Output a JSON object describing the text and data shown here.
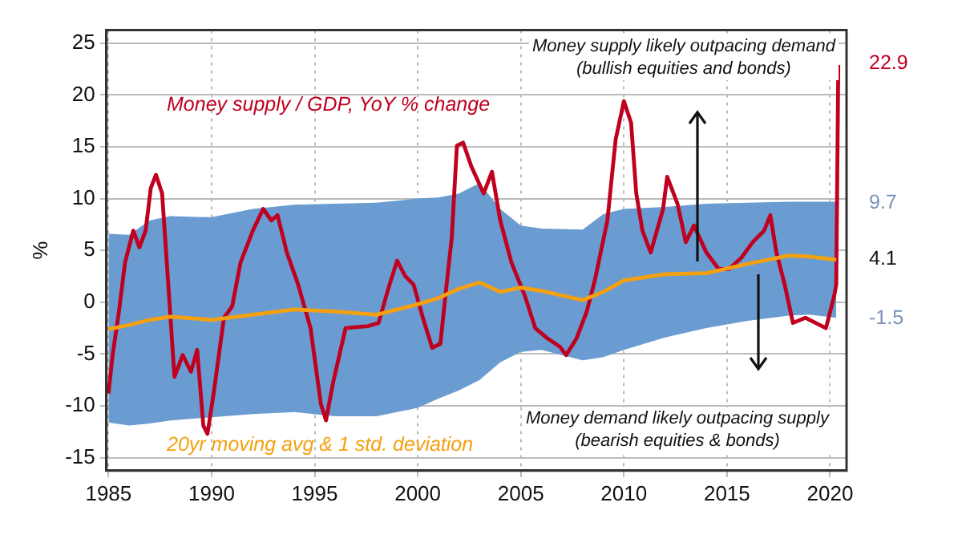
{
  "chart_data": {
    "type": "line",
    "ylabel": "%",
    "xlim": [
      1984.9,
      2020.8
    ],
    "xticks": [
      1985,
      1990,
      1995,
      2000,
      2005,
      2010,
      2015,
      2020
    ],
    "ylim": [
      -16.25,
      26.25
    ],
    "yticks": [
      -15,
      -10,
      -5,
      0,
      5,
      10,
      15,
      20,
      25
    ],
    "grid": true,
    "legend": false,
    "marker": "none",
    "line_style": "solid",
    "series": [
      {
        "name": "Money supply / GDP, YoY % change",
        "color": "#c0001f",
        "x": [
          1985.0,
          1985.2,
          1985.5,
          1985.8,
          1986.2,
          1986.5,
          1986.8,
          1987.05,
          1987.3,
          1987.6,
          1987.9,
          1988.2,
          1988.6,
          1989.0,
          1989.3,
          1989.6,
          1989.8,
          1990.1,
          1990.6,
          1991.0,
          1991.4,
          1992.0,
          1992.5,
          1992.9,
          1993.2,
          1993.65,
          1994.2,
          1994.8,
          1995.3,
          1995.55,
          1995.9,
          1996.5,
          1997.0,
          1997.6,
          1998.1,
          1998.6,
          1999.0,
          1999.4,
          1999.8,
          2000.25,
          2000.7,
          2001.1,
          2001.4,
          2001.65,
          2001.9,
          2002.2,
          2002.6,
          2003.2,
          2003.6,
          2004.0,
          2004.55,
          2005.2,
          2005.7,
          2006.3,
          2006.9,
          2007.2,
          2007.7,
          2008.2,
          2008.6,
          2009.2,
          2009.6,
          2010.0,
          2010.35,
          2010.6,
          2010.9,
          2011.3,
          2011.9,
          2012.1,
          2012.6,
          2013.0,
          2013.4,
          2014.0,
          2014.6,
          2015.1,
          2015.7,
          2016.25,
          2016.8,
          2017.1,
          2017.4,
          2017.8,
          2018.2,
          2018.8,
          2019.3,
          2019.8,
          2020.2,
          2020.3,
          2020.4
        ],
        "values": [
          -8.8,
          -5.1,
          -1,
          3.8,
          6.9,
          5.3,
          6.9,
          11,
          12.3,
          10.5,
          1.7,
          -7.2,
          -5.1,
          -6.7,
          -4.6,
          -11.9,
          -12.7,
          -8.8,
          -1.5,
          -0.4,
          3.8,
          6.9,
          9,
          7.9,
          8.4,
          4.8,
          1.7,
          -2.5,
          -9.8,
          -11.4,
          -7.7,
          -2.5,
          -2.4,
          -2.3,
          -2.0,
          1.5,
          4,
          2.5,
          1.7,
          -1.5,
          -4.4,
          -4,
          1.7,
          6.2,
          15.1,
          15.4,
          13.1,
          10.5,
          12.6,
          7.9,
          3.8,
          0.6,
          -2.5,
          -3.5,
          -4.3,
          -5.1,
          -3.5,
          -0.9,
          2.2,
          7.9,
          15.7,
          19.4,
          17.3,
          10.5,
          6.9,
          4.8,
          9,
          12.1,
          9.5,
          5.8,
          7.4,
          4.8,
          3.2,
          3.2,
          4.3,
          5.8,
          6.9,
          8.4,
          4.8,
          1.7,
          -2.0,
          -1.5,
          -2.0,
          -2.5,
          0.6,
          1.7,
          22.9
        ]
      },
      {
        "name": "20yr moving avg & 1 std. deviation",
        "color": "#f5a00f",
        "x": [
          1985,
          1986,
          1987,
          1988,
          1990,
          1992,
          1994,
          1996,
          1998,
          2000,
          2001,
          2002,
          2003,
          2004,
          2005,
          2006,
          2008,
          2009,
          2010,
          2012,
          2014,
          2016,
          2018,
          2019,
          2020.3
        ],
        "values": [
          -2.6,
          -2.2,
          -1.7,
          -1.4,
          -1.7,
          -1.2,
          -0.7,
          -0.9,
          -1.2,
          -0.2,
          0.4,
          1.3,
          1.9,
          1.0,
          1.4,
          1.1,
          0.2,
          1.0,
          2.1,
          2.7,
          2.8,
          3.7,
          4.5,
          4.4,
          4.1
        ],
        "upper": [
          6.6,
          6.5,
          7.9,
          8.3,
          8.2,
          9.0,
          9.4,
          9.5,
          9.6,
          10.0,
          10.1,
          10.5,
          11.5,
          9.0,
          7.4,
          7.1,
          7.0,
          8.5,
          9.0,
          9.2,
          9.5,
          9.6,
          9.7,
          9.7,
          9.7
        ],
        "lower": [
          -11.6,
          -11.9,
          -11.7,
          -11.4,
          -11.1,
          -10.8,
          -10.6,
          -11.0,
          -11.0,
          -10.2,
          -9.3,
          -8.5,
          -7.5,
          -5.8,
          -4.8,
          -4.6,
          -5.6,
          -5.3,
          -4.6,
          -3.4,
          -2.5,
          -1.8,
          -1.3,
          -1.2,
          -1.5
        ]
      }
    ],
    "annotations": [
      "Money supply likely outpacing demand\n(bullish equities and bonds)",
      "Money demand likely outpacing supply\n(bearish equities & bonds)",
      "22.9",
      "9.7",
      "4.1",
      "-1.5"
    ]
  }
}
